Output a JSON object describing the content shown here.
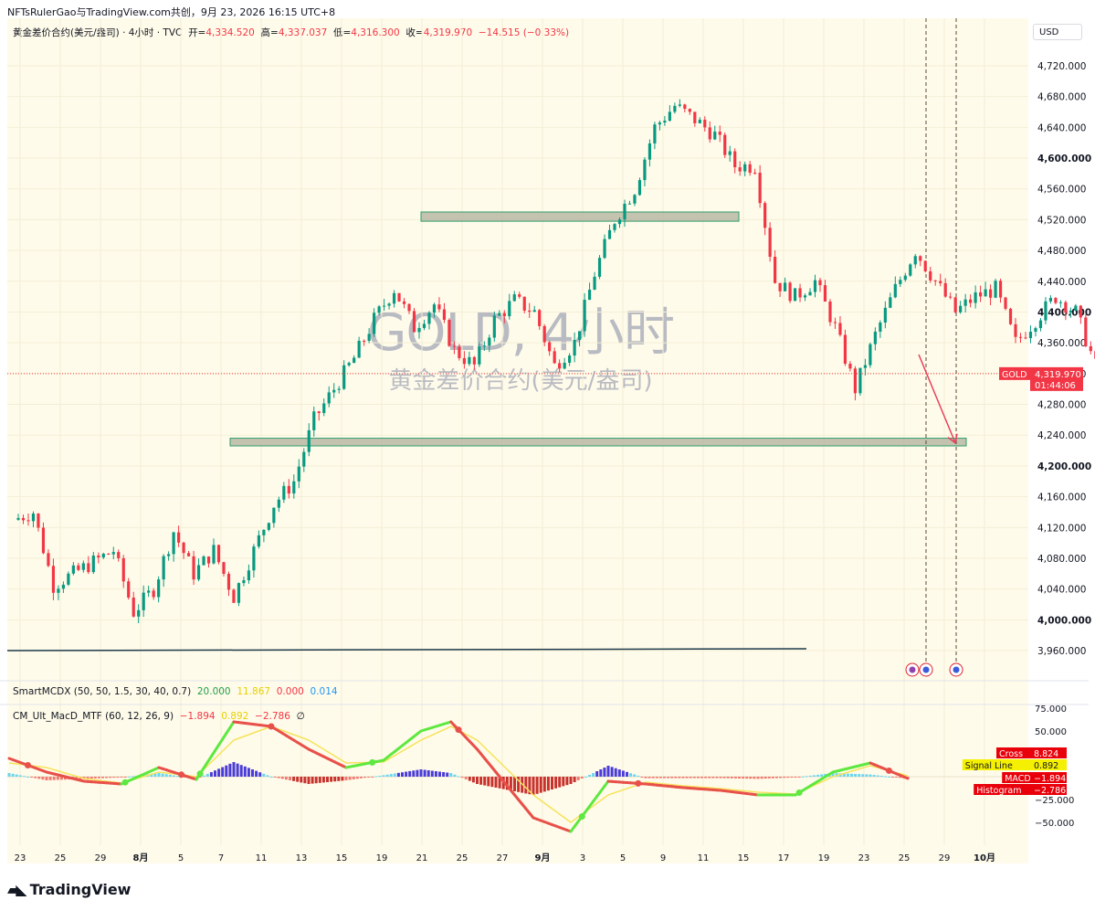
{
  "header": {
    "text": "NFTsRulerGao与TradingView.com共创，9月 23, 2026 16:15 UTC+8"
  },
  "legend": {
    "symbol": "黄金差价合约(美元/盎司) · 4小时 · TVC",
    "open_label": "开=",
    "open": "4,334.520",
    "high_label": "高=",
    "high": "4,337.037",
    "low_label": "低=",
    "low": "4,316.300",
    "close_label": "收=",
    "close": "4,319.970",
    "change": "−14.515 (−0.33%)"
  },
  "currency": "USD",
  "watermark": {
    "title": "GOLD, 4小时",
    "subtitle": "黄金差价合约(美元/盎司)"
  },
  "last_price": {
    "symbol": "GOLD",
    "price": "4,319.970",
    "countdown": "01:44:06"
  },
  "indicator1": {
    "name": "SmartMCDX (50, 50, 1.5, 30, 40, 0.7)",
    "v1": "20.000",
    "v2": "11.867",
    "v3": "0.000",
    "v4": "0.014"
  },
  "indicator2": {
    "name": "CM_Ult_MacD_MTF (60, 12, 26, 9)",
    "v1": "−1.894",
    "v2": "0.892",
    "v3": "−2.786",
    "v4": "∅"
  },
  "macd_labels": [
    {
      "label": "Cross",
      "value": "8.824"
    },
    {
      "label": "Signal Line",
      "value": "0.892"
    },
    {
      "label": "MACD",
      "value": "−1.894"
    },
    {
      "label": "Histogram",
      "value": "−2.786"
    }
  ],
  "branding": {
    "name": "TradingView"
  },
  "colors": {
    "up": "#089981",
    "down": "#f23645",
    "zone_fill": "#b8b8a6",
    "zone_border": "#2e9e6a",
    "arrow": "#e8405a",
    "bg": "#fffbea"
  },
  "chart_data": [
    {
      "type": "candlestick",
      "title": "黄金差价合约(美元/盎司) · 4小时 · TVC",
      "x_ticks": [
        "23",
        "25",
        "29",
        "8月",
        "5",
        "7",
        "11",
        "13",
        "15",
        "19",
        "21",
        "25",
        "27",
        "9月",
        "3",
        "5",
        "9",
        "11",
        "15",
        "17",
        "19",
        "23",
        "25",
        "29",
        "10月"
      ],
      "y_ticks": [
        "4,720.000",
        "4,680.000",
        "4,640.000",
        "4,600.000",
        "4,560.000",
        "4,520.000",
        "4,480.000",
        "4,440.000",
        "4,400.000",
        "4,360.000",
        "4,320.000",
        "4,280.000",
        "4,240.000",
        "4,200.000",
        "4,160.000",
        "4,120.000",
        "4,080.000",
        "4,040.000",
        "4,000.000",
        "3,960.000"
      ],
      "ylim": [
        3950,
        4742
      ],
      "close_path": [
        [
          23,
          4130
        ],
        [
          24,
          4140
        ],
        [
          25,
          4045
        ],
        [
          26,
          4060
        ],
        [
          28,
          4090
        ],
        [
          29,
          4010
        ],
        [
          30,
          4040
        ],
        [
          31,
          4115
        ],
        [
          32,
          4060
        ],
        [
          33,
          4090
        ],
        [
          34,
          4030
        ],
        [
          35,
          4090
        ],
        [
          36,
          4150
        ],
        [
          37,
          4180
        ],
        [
          38,
          4260
        ],
        [
          39,
          4300
        ],
        [
          40,
          4340
        ],
        [
          41,
          4390
        ],
        [
          42,
          4430
        ],
        [
          43,
          4380
        ],
        [
          44,
          4410
        ],
        [
          45,
          4350
        ],
        [
          46,
          4330
        ],
        [
          47,
          4390
        ],
        [
          48,
          4415
        ],
        [
          49,
          4400
        ],
        [
          50,
          4330
        ],
        [
          51,
          4360
        ],
        [
          52,
          4450
        ],
        [
          53,
          4520
        ],
        [
          54,
          4560
        ],
        [
          55,
          4640
        ],
        [
          56,
          4668
        ],
        [
          57,
          4650
        ],
        [
          58,
          4630
        ],
        [
          59,
          4590
        ],
        [
          60,
          4590
        ],
        [
          61,
          4440
        ],
        [
          62,
          4420
        ],
        [
          63,
          4440
        ],
        [
          64,
          4380
        ],
        [
          65,
          4300
        ],
        [
          66,
          4370
        ],
        [
          67,
          4430
        ],
        [
          68,
          4480
        ],
        [
          69,
          4440
        ],
        [
          70,
          4400
        ],
        [
          71,
          4420
        ],
        [
          72,
          4430
        ],
        [
          73,
          4360
        ],
        [
          74,
          4390
        ],
        [
          75,
          4420
        ],
        [
          76,
          4400
        ],
        [
          77,
          4330
        ],
        [
          78,
          4370
        ],
        [
          79,
          4350
        ],
        [
          80,
          4260
        ],
        [
          81,
          4290
        ],
        [
          82,
          4280
        ],
        [
          83,
          4350
        ],
        [
          84,
          4270
        ],
        [
          85,
          4370
        ],
        [
          86,
          4390
        ],
        [
          87,
          4380
        ],
        [
          88,
          4360
        ],
        [
          89,
          4330
        ],
        [
          90,
          4355
        ],
        [
          91,
          4320
        ]
      ],
      "zones": [
        {
          "name": "resistance",
          "top": 4530,
          "bottom": 4518
        },
        {
          "name": "support",
          "top": 4236,
          "bottom": 4226
        }
      ],
      "horizontal_line": 3960,
      "projected_target": 4230
    },
    {
      "type": "line",
      "title": "CM_Ult_MacD_MTF (60, 12, 26, 9)",
      "y_ticks": [
        "75.000",
        "50.000",
        "25.000",
        "−25.000",
        "−50.000"
      ],
      "ylim": [
        -65,
        80
      ],
      "series": [
        {
          "name": "MACD",
          "values": [
            [
              0,
              20
            ],
            [
              10,
              5
            ],
            [
              20,
              -5
            ],
            [
              30,
              -8
            ],
            [
              40,
              10
            ],
            [
              50,
              -3
            ],
            [
              60,
              60
            ],
            [
              70,
              55
            ],
            [
              80,
              30
            ],
            [
              90,
              10
            ],
            [
              100,
              18
            ],
            [
              110,
              50
            ],
            [
              118,
              60
            ],
            [
              125,
              30
            ],
            [
              140,
              -45
            ],
            [
              150,
              -60
            ],
            [
              160,
              -5
            ],
            [
              170,
              -8
            ],
            [
              180,
              -12
            ],
            [
              190,
              -15
            ],
            [
              200,
              -20
            ],
            [
              210,
              -20
            ],
            [
              220,
              5
            ],
            [
              230,
              15
            ],
            [
              240,
              -1.894
            ]
          ]
        },
        {
          "name": "Signal Line",
          "values": [
            [
              0,
              15
            ],
            [
              10,
              10
            ],
            [
              20,
              -2
            ],
            [
              30,
              -7
            ],
            [
              40,
              5
            ],
            [
              50,
              0
            ],
            [
              60,
              40
            ],
            [
              70,
              55
            ],
            [
              80,
              40
            ],
            [
              90,
              15
            ],
            [
              100,
              16
            ],
            [
              110,
              40
            ],
            [
              118,
              55
            ],
            [
              125,
              40
            ],
            [
              140,
              -20
            ],
            [
              150,
              -50
            ],
            [
              160,
              -20
            ],
            [
              170,
              -6
            ],
            [
              180,
              -10
            ],
            [
              190,
              -13
            ],
            [
              200,
              -17
            ],
            [
              210,
              -19
            ],
            [
              220,
              0
            ],
            [
              230,
              12
            ],
            [
              240,
              0.892
            ]
          ]
        }
      ],
      "last_values": {
        "Cross": 8.824,
        "Signal Line": 0.892,
        "MACD": -1.894,
        "Histogram": -2.786
      }
    }
  ]
}
